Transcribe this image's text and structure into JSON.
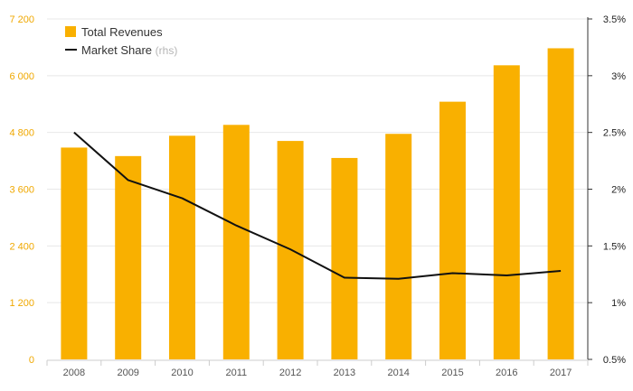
{
  "chart_data": {
    "type": "bar",
    "categories": [
      "2008",
      "2009",
      "2010",
      "2011",
      "2012",
      "2013",
      "2014",
      "2015",
      "2016",
      "2017"
    ],
    "series": [
      {
        "name": "Total Revenues",
        "type": "bar",
        "axis": "left",
        "values": [
          4480,
          4300,
          4730,
          4960,
          4620,
          4260,
          4770,
          5450,
          6220,
          6580
        ]
      },
      {
        "name": "Market Share",
        "name_suffix": "(rhs)",
        "type": "line",
        "axis": "right",
        "values": [
          2.5,
          2.08,
          1.92,
          1.68,
          1.47,
          1.22,
          1.21,
          1.26,
          1.24,
          1.28
        ]
      }
    ],
    "y_left": {
      "min": 0,
      "max": 7200,
      "ticks": [
        0,
        1200,
        2400,
        3600,
        4800,
        6000,
        7200
      ],
      "tick_labels": [
        "0",
        "1 200",
        "2 400",
        "3 600",
        "4 800",
        "6 000",
        "7 200"
      ]
    },
    "y_right": {
      "min": 0.5,
      "max": 3.5,
      "ticks": [
        0.5,
        1,
        1.5,
        2,
        2.5,
        3,
        3.5
      ],
      "tick_labels": [
        "0.5%",
        "1%",
        "1.5%",
        "2%",
        "2.5%",
        "3%",
        "3.5%"
      ]
    },
    "grid": true,
    "legend_position": "top-left",
    "colors": {
      "bar": "#f9b000",
      "line": "#111111",
      "left_tick": "#f0a800",
      "grid": "#e8e8e8"
    }
  }
}
